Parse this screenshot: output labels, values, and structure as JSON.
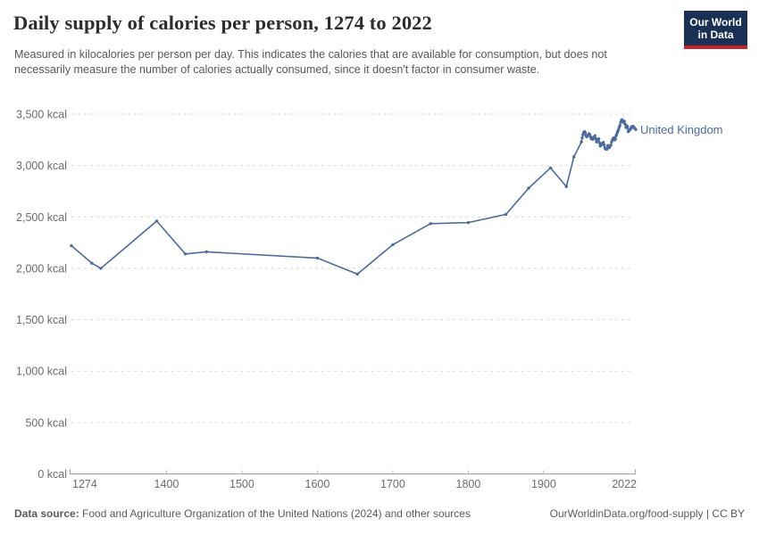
{
  "header": {
    "title": "Daily supply of calories per person, 1274 to 2022",
    "subtitle": "Measured in kilocalories per person per day. This indicates the calories that are available for consumption, but does not necessarily measure the number of calories actually consumed, since it doesn't factor in consumer waste.",
    "logo": {
      "line1": "Our World",
      "line2": "in Data",
      "bg_color": "#1a3055",
      "stripe_color": "#c4252b"
    }
  },
  "chart_data": {
    "type": "line",
    "title": "Daily supply of calories per person, 1274 to 2022",
    "xlabel": "",
    "ylabel": "",
    "xlim": [
      1274,
      2022
    ],
    "ylim": [
      0,
      3500
    ],
    "grid": "horizontal-dashed",
    "legend_position": "end-of-line-label",
    "x_ticks": [
      {
        "value": 1274,
        "label": "1274"
      },
      {
        "value": 1400,
        "label": "1400"
      },
      {
        "value": 1500,
        "label": "1500"
      },
      {
        "value": 1600,
        "label": "1600"
      },
      {
        "value": 1700,
        "label": "1700"
      },
      {
        "value": 1800,
        "label": "1800"
      },
      {
        "value": 1900,
        "label": "1900"
      },
      {
        "value": 2022,
        "label": "2022"
      }
    ],
    "y_ticks": [
      {
        "value": 0,
        "label": "0 kcal"
      },
      {
        "value": 500,
        "label": "500 kcal"
      },
      {
        "value": 1000,
        "label": "1,000 kcal"
      },
      {
        "value": 1500,
        "label": "1,500 kcal"
      },
      {
        "value": 2000,
        "label": "2,000 kcal"
      },
      {
        "value": 2500,
        "label": "2,500 kcal"
      },
      {
        "value": 3000,
        "label": "3,000 kcal"
      },
      {
        "value": 3500,
        "label": "3,500 kcal"
      }
    ],
    "series": [
      {
        "name": "United Kingdom",
        "color": "#4C6A9C",
        "points": [
          [
            1274,
            2220
          ],
          [
            1301,
            2050
          ],
          [
            1313,
            2000
          ],
          [
            1387,
            2460
          ],
          [
            1425,
            2140
          ],
          [
            1453,
            2160
          ],
          [
            1600,
            2100
          ],
          [
            1653,
            1944
          ],
          [
            1700,
            2230
          ],
          [
            1750,
            2435
          ],
          [
            1800,
            2445
          ],
          [
            1850,
            2525
          ],
          [
            1880,
            2780
          ],
          [
            1909,
            2977
          ],
          [
            1930,
            2795
          ],
          [
            1940,
            3085
          ],
          [
            1950,
            3230
          ],
          [
            1951,
            3270
          ],
          [
            1952,
            3300
          ],
          [
            1953,
            3320
          ],
          [
            1954,
            3330
          ],
          [
            1955,
            3320
          ],
          [
            1956,
            3290
          ],
          [
            1957,
            3280
          ],
          [
            1958,
            3290
          ],
          [
            1959,
            3300
          ],
          [
            1960,
            3310
          ],
          [
            1961,
            3300
          ],
          [
            1962,
            3280
          ],
          [
            1963,
            3260
          ],
          [
            1964,
            3270
          ],
          [
            1965,
            3255
          ],
          [
            1966,
            3265
          ],
          [
            1967,
            3280
          ],
          [
            1968,
            3290
          ],
          [
            1969,
            3260
          ],
          [
            1970,
            3230
          ],
          [
            1971,
            3245
          ],
          [
            1972,
            3255
          ],
          [
            1973,
            3260
          ],
          [
            1974,
            3220
          ],
          [
            1975,
            3190
          ],
          [
            1976,
            3200
          ],
          [
            1977,
            3210
          ],
          [
            1978,
            3215
          ],
          [
            1979,
            3225
          ],
          [
            1980,
            3200
          ],
          [
            1981,
            3170
          ],
          [
            1982,
            3160
          ],
          [
            1983,
            3170
          ],
          [
            1984,
            3160
          ],
          [
            1985,
            3195
          ],
          [
            1986,
            3180
          ],
          [
            1987,
            3175
          ],
          [
            1988,
            3190
          ],
          [
            1989,
            3200
          ],
          [
            1990,
            3230
          ],
          [
            1991,
            3250
          ],
          [
            1992,
            3260
          ],
          [
            1993,
            3270
          ],
          [
            1994,
            3250
          ],
          [
            1995,
            3255
          ],
          [
            1996,
            3290
          ],
          [
            1997,
            3310
          ],
          [
            1998,
            3330
          ],
          [
            1999,
            3345
          ],
          [
            2000,
            3370
          ],
          [
            2001,
            3390
          ],
          [
            2002,
            3420
          ],
          [
            2003,
            3440
          ],
          [
            2004,
            3445
          ],
          [
            2005,
            3430
          ],
          [
            2006,
            3420
          ],
          [
            2007,
            3430
          ],
          [
            2008,
            3400
          ],
          [
            2009,
            3370
          ],
          [
            2010,
            3385
          ],
          [
            2011,
            3380
          ],
          [
            2012,
            3330
          ],
          [
            2013,
            3340
          ],
          [
            2014,
            3350
          ],
          [
            2015,
            3355
          ],
          [
            2016,
            3370
          ],
          [
            2017,
            3380
          ],
          [
            2018,
            3375
          ],
          [
            2019,
            3380
          ],
          [
            2020,
            3365
          ],
          [
            2021,
            3360
          ],
          [
            2022,
            3350
          ]
        ]
      }
    ],
    "colors": {
      "gridline": "#d9d9d9",
      "axis": "#a1a1a1",
      "tick": "#bbbbbb",
      "tick_label": "#6b6b6b"
    }
  },
  "footer": {
    "source_label": "Data source:",
    "source_text": " Food and Agriculture Organization of the United Nations (2024) and other sources",
    "link_text": "OurWorldinData.org/food-supply | CC BY"
  }
}
